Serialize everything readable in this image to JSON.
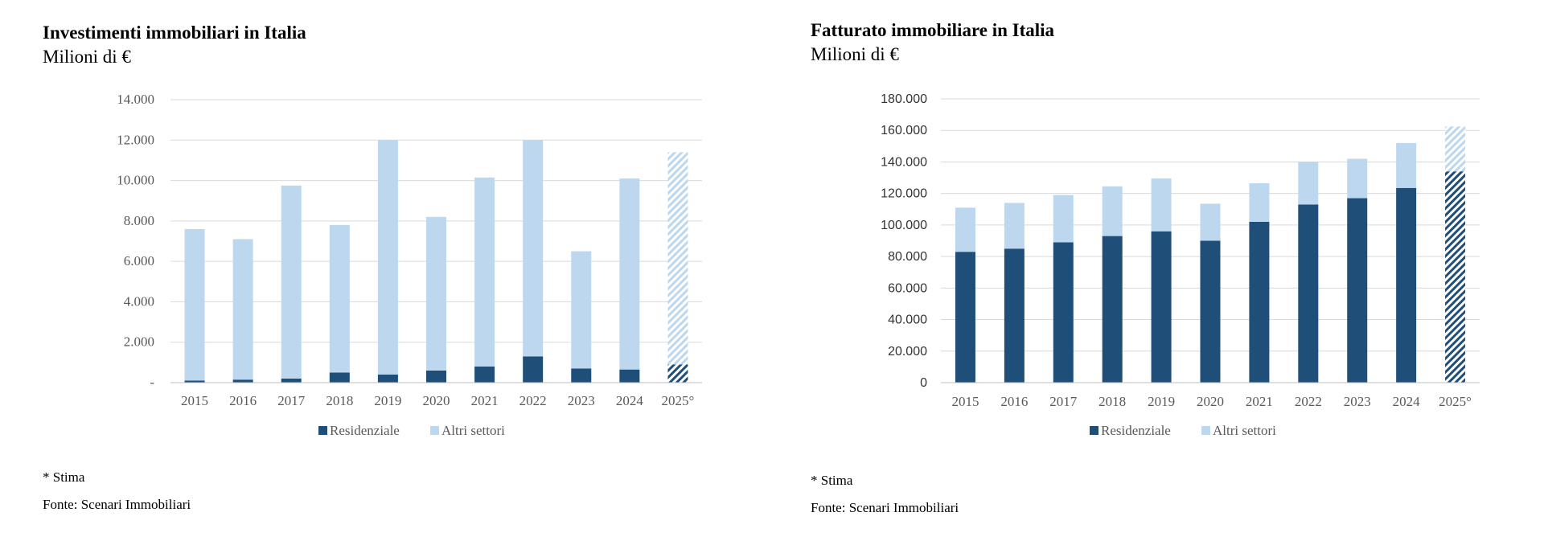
{
  "colors": {
    "residential": "#1f4e79",
    "other": "#bdd7ee",
    "grid": "#d9d9d9"
  },
  "charts": [
    {
      "title": "Investimenti immobiliari in Italia",
      "subtitle": "Milioni di €",
      "note": "* Stima",
      "source": "Fonte: Scenari Immobiliari",
      "legend_residential": "Residenziale",
      "legend_other": "Altri settori"
    },
    {
      "title": "Fatturato immobiliare in Italia",
      "subtitle": "Milioni di €",
      "note": "* Stima",
      "source": "Fonte: Scenari Immobiliari",
      "legend_residential": "Residenziale",
      "legend_other": "Altri settori"
    }
  ],
  "chart_data": [
    {
      "type": "bar",
      "stacked": true,
      "title": "Investimenti immobiliari in Italia",
      "subtitle": "Milioni di €",
      "categories": [
        "2015",
        "2016",
        "2017",
        "2018",
        "2019",
        "2020",
        "2021",
        "2022",
        "2023",
        "2024",
        "2025°"
      ],
      "estimated_categories": [
        "2025°"
      ],
      "series": [
        {
          "name": "Residenziale",
          "values": [
            100,
            150,
            200,
            500,
            400,
            600,
            800,
            1300,
            700,
            650,
            900
          ]
        },
        {
          "name": "Altri settori",
          "values": [
            7500,
            6950,
            9550,
            7300,
            11600,
            7600,
            9350,
            10700,
            5800,
            9450,
            10500
          ]
        }
      ],
      "ylim": [
        0,
        14000
      ],
      "yticks": [
        0,
        2000,
        4000,
        6000,
        8000,
        10000,
        12000,
        14000
      ],
      "ytick_labels": [
        "-",
        "2.000",
        "4.000",
        "6.000",
        "8.000",
        "10.000",
        "12.000",
        "14.000"
      ],
      "grid": true,
      "legend": "bottom"
    },
    {
      "type": "bar",
      "stacked": true,
      "title": "Fatturato immobiliare in Italia",
      "subtitle": "Milioni di €",
      "categories": [
        "2015",
        "2016",
        "2017",
        "2018",
        "2019",
        "2020",
        "2021",
        "2022",
        "2023",
        "2024",
        "2025°"
      ],
      "estimated_categories": [
        "2025°"
      ],
      "series": [
        {
          "name": "Residenziale",
          "values": [
            83000,
            85000,
            89000,
            93000,
            96000,
            90000,
            102000,
            113000,
            117000,
            123500,
            134000
          ]
        },
        {
          "name": "Altri settori",
          "values": [
            28000,
            29000,
            30000,
            31500,
            33500,
            23500,
            24500,
            27000,
            25000,
            28500,
            28500
          ]
        }
      ],
      "ylim": [
        0,
        180000
      ],
      "yticks": [
        0,
        20000,
        40000,
        60000,
        80000,
        100000,
        120000,
        140000,
        160000,
        180000
      ],
      "ytick_labels": [
        "0",
        "20.000",
        "40.000",
        "60.000",
        "80.000",
        "100.000",
        "120.000",
        "140.000",
        "160.000",
        "180.000"
      ],
      "grid": true,
      "legend": "bottom"
    }
  ]
}
